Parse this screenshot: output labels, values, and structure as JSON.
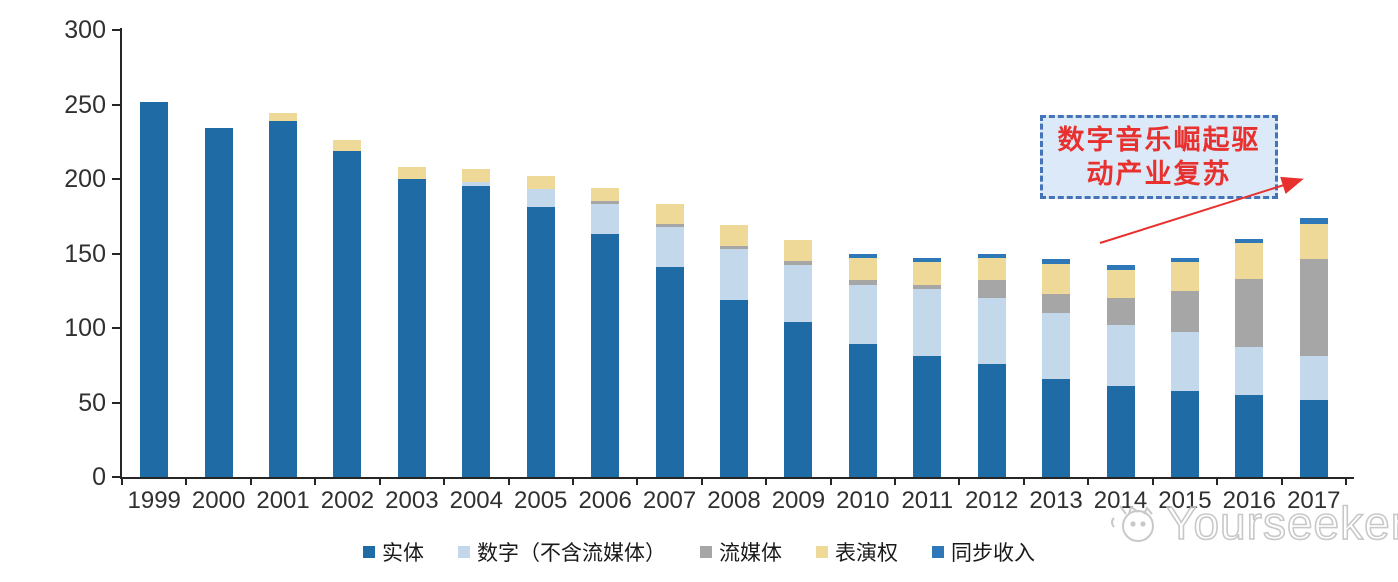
{
  "chart_data": {
    "type": "bar",
    "stacked": true,
    "grid": false,
    "legend_position": "bottom",
    "ylim": [
      0,
      300
    ],
    "yticks": [
      0,
      50,
      100,
      150,
      200,
      250,
      300
    ],
    "categories": [
      "1999",
      "2000",
      "2001",
      "2002",
      "2003",
      "2004",
      "2005",
      "2006",
      "2007",
      "2008",
      "2009",
      "2010",
      "2011",
      "2012",
      "2013",
      "2014",
      "2015",
      "2016",
      "2017"
    ],
    "series": [
      {
        "name": "实体",
        "color": "#1f6ba6",
        "values": [
          252,
          234,
          239,
          219,
          200,
          195,
          181,
          163,
          141,
          119,
          104,
          89,
          81,
          76,
          66,
          61,
          58,
          55,
          52
        ]
      },
      {
        "name": "数字（不含流媒体）",
        "color": "#c3d8eb",
        "values": [
          0,
          0,
          0,
          0,
          0,
          3,
          12,
          20,
          27,
          34,
          38,
          40,
          45,
          44,
          44,
          41,
          39,
          32,
          29
        ]
      },
      {
        "name": "流媒体",
        "color": "#a6a6a6",
        "values": [
          0,
          0,
          0,
          0,
          0,
          0,
          0,
          2,
          2,
          2,
          3,
          3,
          3,
          12,
          13,
          18,
          28,
          46,
          65
        ]
      },
      {
        "name": "表演权",
        "color": "#efd998",
        "values": [
          0,
          0,
          5,
          7,
          8,
          9,
          9,
          9,
          13,
          14,
          14,
          15,
          15,
          15,
          20,
          19,
          19,
          24,
          24
        ]
      },
      {
        "name": "同步收入",
        "color": "#2e78b8",
        "values": [
          0,
          0,
          0,
          0,
          0,
          0,
          0,
          0,
          0,
          0,
          0,
          3,
          3,
          3,
          3,
          3,
          3,
          3,
          4
        ]
      }
    ]
  },
  "annotation": {
    "line1": "数字音乐崛起驱",
    "line2": "动产业复苏",
    "text_color": "#e8312e",
    "border_color": "#4473b7",
    "fill_color": "#dbe9f8",
    "arrow_color": "#e8312e"
  },
  "watermark": {
    "text": "Yourseeker"
  }
}
